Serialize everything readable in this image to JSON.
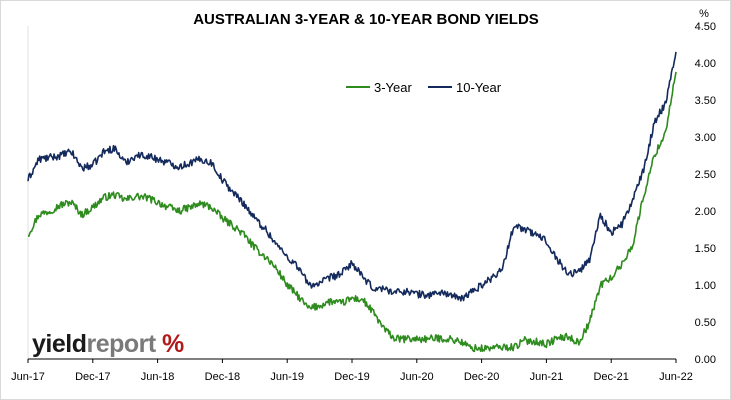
{
  "chart_data": {
    "type": "line",
    "title": "AUSTRALIAN 3-YEAR & 10-YEAR BOND YIELDS",
    "ylabel": "%",
    "ylim": [
      0,
      4.5
    ],
    "yticks": [
      "0.00",
      "0.50",
      "1.00",
      "1.50",
      "2.00",
      "2.50",
      "3.00",
      "3.50",
      "4.00",
      "4.50"
    ],
    "xlim": [
      "2017-06",
      "2022-06"
    ],
    "xticks": [
      {
        "label": "Jun-17",
        "date": "2017-06"
      },
      {
        "label": "Dec-17",
        "date": "2017-12"
      },
      {
        "label": "Jun-18",
        "date": "2018-06"
      },
      {
        "label": "Dec-18",
        "date": "2018-12"
      },
      {
        "label": "Jun-19",
        "date": "2019-06"
      },
      {
        "label": "Dec-19",
        "date": "2019-12"
      },
      {
        "label": "Jun-20",
        "date": "2020-06"
      },
      {
        "label": "Dec-20",
        "date": "2020-12"
      },
      {
        "label": "Jun-21",
        "date": "2021-06"
      },
      {
        "label": "Dec-21",
        "date": "2021-12"
      },
      {
        "label": "Jun-22",
        "date": "2022-06"
      }
    ],
    "grid": false,
    "legend_position": "top-right",
    "series": [
      {
        "name": "3-Year",
        "color": "#2e8b1e",
        "points": [
          [
            "2017-06",
            1.68
          ],
          [
            "2017-07",
            1.95
          ],
          [
            "2017-08",
            2.0
          ],
          [
            "2017-09",
            2.08
          ],
          [
            "2017-10",
            2.12
          ],
          [
            "2017-11",
            1.95
          ],
          [
            "2017-12",
            2.05
          ],
          [
            "2018-01",
            2.18
          ],
          [
            "2018-02",
            2.22
          ],
          [
            "2018-03",
            2.15
          ],
          [
            "2018-04",
            2.2
          ],
          [
            "2018-05",
            2.18
          ],
          [
            "2018-06",
            2.12
          ],
          [
            "2018-07",
            2.05
          ],
          [
            "2018-08",
            2.0
          ],
          [
            "2018-09",
            2.05
          ],
          [
            "2018-10",
            2.1
          ],
          [
            "2018-11",
            2.05
          ],
          [
            "2018-12",
            1.9
          ],
          [
            "2019-01",
            1.8
          ],
          [
            "2019-02",
            1.68
          ],
          [
            "2019-03",
            1.5
          ],
          [
            "2019-04",
            1.38
          ],
          [
            "2019-05",
            1.22
          ],
          [
            "2019-06",
            1.0
          ],
          [
            "2019-07",
            0.85
          ],
          [
            "2019-08",
            0.68
          ],
          [
            "2019-09",
            0.72
          ],
          [
            "2019-10",
            0.78
          ],
          [
            "2019-11",
            0.75
          ],
          [
            "2019-12",
            0.82
          ],
          [
            "2020-01",
            0.8
          ],
          [
            "2020-02",
            0.62
          ],
          [
            "2020-03",
            0.4
          ],
          [
            "2020-04",
            0.27
          ],
          [
            "2020-05",
            0.27
          ],
          [
            "2020-06",
            0.27
          ],
          [
            "2020-07",
            0.27
          ],
          [
            "2020-08",
            0.28
          ],
          [
            "2020-09",
            0.27
          ],
          [
            "2020-10",
            0.24
          ],
          [
            "2020-11",
            0.15
          ],
          [
            "2020-12",
            0.14
          ],
          [
            "2021-01",
            0.15
          ],
          [
            "2021-02",
            0.16
          ],
          [
            "2021-03",
            0.16
          ],
          [
            "2021-04",
            0.25
          ],
          [
            "2021-05",
            0.24
          ],
          [
            "2021-06",
            0.2
          ],
          [
            "2021-07",
            0.28
          ],
          [
            "2021-08",
            0.3
          ],
          [
            "2021-09",
            0.22
          ],
          [
            "2021-10",
            0.5
          ],
          [
            "2021-11",
            1.0
          ],
          [
            "2021-12",
            1.1
          ],
          [
            "2022-01",
            1.28
          ],
          [
            "2022-02",
            1.55
          ],
          [
            "2022-03",
            2.2
          ],
          [
            "2022-04",
            2.75
          ],
          [
            "2022-05",
            3.05
          ],
          [
            "2022-06",
            3.88
          ]
        ]
      },
      {
        "name": "10-Year",
        "color": "#142a5c",
        "points": [
          [
            "2017-06",
            2.42
          ],
          [
            "2017-07",
            2.7
          ],
          [
            "2017-08",
            2.72
          ],
          [
            "2017-09",
            2.75
          ],
          [
            "2017-10",
            2.8
          ],
          [
            "2017-11",
            2.58
          ],
          [
            "2017-12",
            2.62
          ],
          [
            "2018-01",
            2.8
          ],
          [
            "2018-02",
            2.85
          ],
          [
            "2018-03",
            2.65
          ],
          [
            "2018-04",
            2.75
          ],
          [
            "2018-05",
            2.75
          ],
          [
            "2018-06",
            2.7
          ],
          [
            "2018-07",
            2.65
          ],
          [
            "2018-08",
            2.6
          ],
          [
            "2018-09",
            2.65
          ],
          [
            "2018-10",
            2.7
          ],
          [
            "2018-11",
            2.65
          ],
          [
            "2018-12",
            2.42
          ],
          [
            "2019-01",
            2.25
          ],
          [
            "2019-02",
            2.1
          ],
          [
            "2019-03",
            1.9
          ],
          [
            "2019-04",
            1.75
          ],
          [
            "2019-05",
            1.55
          ],
          [
            "2019-06",
            1.38
          ],
          [
            "2019-07",
            1.25
          ],
          [
            "2019-08",
            1.0
          ],
          [
            "2019-09",
            1.02
          ],
          [
            "2019-10",
            1.1
          ],
          [
            "2019-11",
            1.15
          ],
          [
            "2019-12",
            1.3
          ],
          [
            "2020-01",
            1.1
          ],
          [
            "2020-02",
            0.95
          ],
          [
            "2020-03",
            0.95
          ],
          [
            "2020-04",
            0.9
          ],
          [
            "2020-05",
            0.92
          ],
          [
            "2020-06",
            0.88
          ],
          [
            "2020-07",
            0.86
          ],
          [
            "2020-08",
            0.9
          ],
          [
            "2020-09",
            0.88
          ],
          [
            "2020-10",
            0.8
          ],
          [
            "2020-11",
            0.9
          ],
          [
            "2020-12",
            1.0
          ],
          [
            "2021-01",
            1.1
          ],
          [
            "2021-02",
            1.25
          ],
          [
            "2021-03",
            1.82
          ],
          [
            "2021-04",
            1.75
          ],
          [
            "2021-05",
            1.68
          ],
          [
            "2021-06",
            1.6
          ],
          [
            "2021-07",
            1.35
          ],
          [
            "2021-08",
            1.15
          ],
          [
            "2021-09",
            1.18
          ],
          [
            "2021-10",
            1.35
          ],
          [
            "2021-11",
            1.95
          ],
          [
            "2021-12",
            1.7
          ],
          [
            "2022-01",
            1.82
          ],
          [
            "2022-02",
            2.15
          ],
          [
            "2022-03",
            2.55
          ],
          [
            "2022-04",
            3.2
          ],
          [
            "2022-05",
            3.45
          ],
          [
            "2022-06",
            4.15
          ]
        ]
      }
    ]
  },
  "brand": {
    "logo_text": "yieldreport",
    "logo_part1": "yield",
    "logo_part2": "report",
    "logo_symbol": "%"
  }
}
